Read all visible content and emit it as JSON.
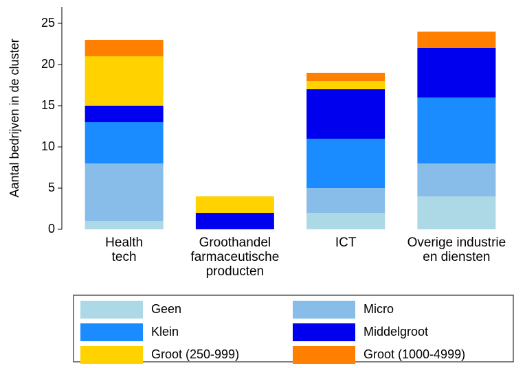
{
  "chart_data": {
    "type": "stacked_bar",
    "ylabel": "Aantal bedrijven in de cluster",
    "categories": [
      "Health\ntech",
      "Groothandel\nfarmaceutische\nproducten",
      "ICT",
      "Overige industrie\nen diensten"
    ],
    "series": [
      {
        "name": "Geen",
        "color": "#add8e6",
        "values": [
          1,
          0,
          2,
          4
        ]
      },
      {
        "name": "Micro",
        "color": "#87bde8",
        "values": [
          7,
          0,
          3,
          4
        ]
      },
      {
        "name": "Klein",
        "color": "#1a8cff",
        "values": [
          5,
          0,
          6,
          8
        ]
      },
      {
        "name": "Middelgroot",
        "color": "#0000ee",
        "values": [
          2,
          2,
          6,
          6
        ]
      },
      {
        "name": "Groot (250-999)",
        "color": "#ffd200",
        "values": [
          6,
          2,
          1,
          0
        ]
      },
      {
        "name": "Groot (1000-4999)",
        "color": "#ff8000",
        "values": [
          2,
          0,
          1,
          2
        ]
      }
    ],
    "ylim": [
      0,
      27
    ],
    "yticks": [
      0,
      5,
      10,
      15,
      20,
      25
    ],
    "grid": false
  }
}
